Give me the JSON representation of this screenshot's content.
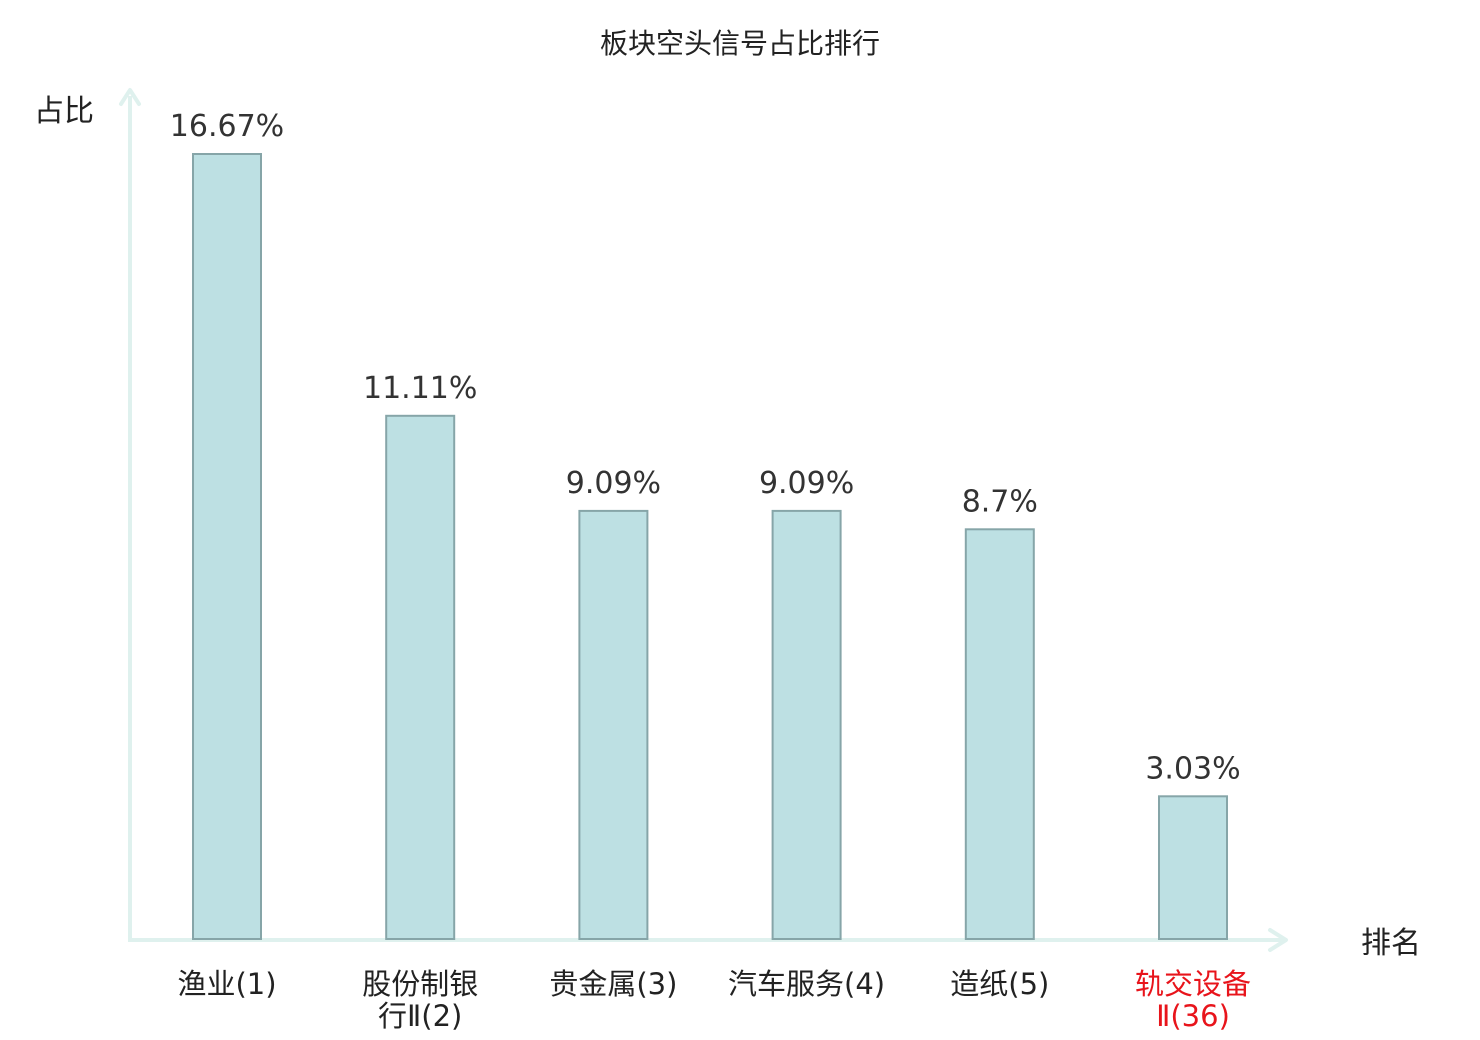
{
  "chart_data": {
    "type": "bar",
    "title": "板块空头信号占比排行",
    "ylabel": "占比",
    "xlabel": "排名",
    "categories": [
      [
        "渔业(1)"
      ],
      [
        "股份制银",
        "行Ⅱ(2)"
      ],
      [
        "贵金属(3)"
      ],
      [
        "汽车服务(4)"
      ],
      [
        "造纸(5)"
      ],
      [
        "轨交设备",
        "Ⅱ(36)"
      ]
    ],
    "values": [
      16.67,
      11.11,
      9.09,
      9.09,
      8.7,
      3.03
    ],
    "value_labels": [
      "16.67%",
      "11.11%",
      "9.09%",
      "9.09%",
      "8.7%",
      "3.03%"
    ],
    "highlight_index": 5,
    "ylim": [
      0,
      16.67
    ],
    "grid": false,
    "legend": "none",
    "colors": {
      "bar_fill": "#bde0e3",
      "bar_stroke": "#86a5a8",
      "axis": "#dff1ee",
      "label_text": "#222222",
      "highlight_text": "#e8141b"
    }
  }
}
